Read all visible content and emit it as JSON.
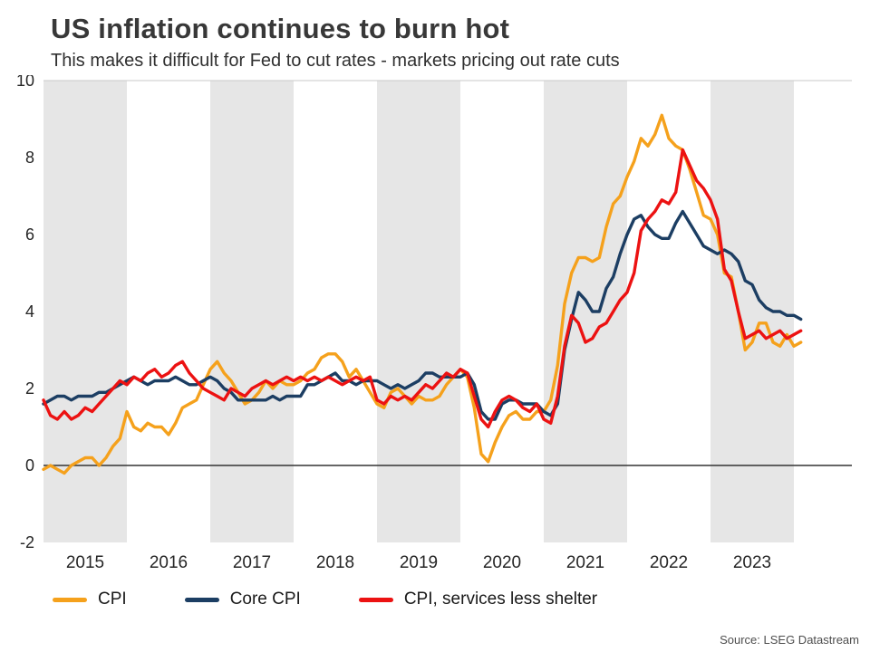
{
  "header": {
    "title": "US inflation continues to burn hot",
    "subtitle": "This makes it difficult for Fed to cut rates - markets pricing out rate cuts"
  },
  "source": "Source: LSEG Datastream",
  "colors": {
    "cpi": "#F5A11C",
    "core_cpi": "#1C3E63",
    "services": "#EC1212",
    "band": "#E6E6E6",
    "zero_line": "#333333",
    "top_grid": "#C8C8C8",
    "tick_text": "#262626"
  },
  "chart_data": {
    "type": "line",
    "title": "US inflation continues to burn hot",
    "subtitle": "This makes it difficult for Fed to cut rates - markets pricing out rate cuts",
    "x_start": "2015-01",
    "x_end": "2024-02",
    "x_frequency": "monthly",
    "ylim": [
      -2,
      10
    ],
    "yticks": [
      -2,
      0,
      2,
      4,
      6,
      8,
      10
    ],
    "xticks": [
      "2015",
      "2016",
      "2017",
      "2018",
      "2019",
      "2020",
      "2021",
      "2022",
      "2023"
    ],
    "shaded_years": [
      "2015",
      "2017",
      "2019",
      "2021",
      "2023"
    ],
    "legend_position": "bottom",
    "series": [
      {
        "name": "CPI",
        "color": "#F5A11C",
        "values": [
          -0.1,
          0.0,
          -0.1,
          -0.2,
          0.0,
          0.1,
          0.2,
          0.2,
          0.0,
          0.2,
          0.5,
          0.7,
          1.4,
          1.0,
          0.9,
          1.1,
          1.0,
          1.0,
          0.8,
          1.1,
          1.5,
          1.6,
          1.7,
          2.1,
          2.5,
          2.7,
          2.4,
          2.2,
          1.9,
          1.6,
          1.7,
          1.9,
          2.2,
          2.0,
          2.2,
          2.1,
          2.1,
          2.2,
          2.4,
          2.5,
          2.8,
          2.9,
          2.9,
          2.7,
          2.3,
          2.5,
          2.2,
          1.9,
          1.6,
          1.5,
          1.9,
          2.0,
          1.8,
          1.6,
          1.8,
          1.7,
          1.7,
          1.8,
          2.1,
          2.3,
          2.5,
          2.3,
          1.5,
          0.3,
          0.1,
          0.6,
          1.0,
          1.3,
          1.4,
          1.2,
          1.2,
          1.4,
          1.4,
          1.7,
          2.6,
          4.2,
          5.0,
          5.4,
          5.4,
          5.3,
          5.4,
          6.2,
          6.8,
          7.0,
          7.5,
          7.9,
          8.5,
          8.3,
          8.6,
          9.1,
          8.5,
          8.3,
          8.2,
          7.7,
          7.1,
          6.5,
          6.4,
          6.0,
          5.0,
          4.9,
          4.0,
          3.0,
          3.2,
          3.7,
          3.7,
          3.2,
          3.1,
          3.4,
          3.1,
          3.2
        ]
      },
      {
        "name": "Core CPI",
        "color": "#1C3E63",
        "values": [
          1.6,
          1.7,
          1.8,
          1.8,
          1.7,
          1.8,
          1.8,
          1.8,
          1.9,
          1.9,
          2.0,
          2.1,
          2.2,
          2.3,
          2.2,
          2.1,
          2.2,
          2.2,
          2.2,
          2.3,
          2.2,
          2.1,
          2.1,
          2.2,
          2.3,
          2.2,
          2.0,
          1.9,
          1.7,
          1.7,
          1.7,
          1.7,
          1.7,
          1.8,
          1.7,
          1.8,
          1.8,
          1.8,
          2.1,
          2.1,
          2.2,
          2.3,
          2.4,
          2.2,
          2.2,
          2.1,
          2.2,
          2.2,
          2.2,
          2.1,
          2.0,
          2.1,
          2.0,
          2.1,
          2.2,
          2.4,
          2.4,
          2.3,
          2.3,
          2.3,
          2.3,
          2.4,
          2.1,
          1.4,
          1.2,
          1.2,
          1.6,
          1.7,
          1.7,
          1.6,
          1.6,
          1.6,
          1.4,
          1.3,
          1.6,
          3.0,
          3.8,
          4.5,
          4.3,
          4.0,
          4.0,
          4.6,
          4.9,
          5.5,
          6.0,
          6.4,
          6.5,
          6.2,
          6.0,
          5.9,
          5.9,
          6.3,
          6.6,
          6.3,
          6.0,
          5.7,
          5.6,
          5.5,
          5.6,
          5.5,
          5.3,
          4.8,
          4.7,
          4.3,
          4.1,
          4.0,
          4.0,
          3.9,
          3.9,
          3.8
        ]
      },
      {
        "name": "CPI, services less shelter",
        "color": "#EC1212",
        "values": [
          1.7,
          1.3,
          1.2,
          1.4,
          1.2,
          1.3,
          1.5,
          1.4,
          1.6,
          1.8,
          2.0,
          2.2,
          2.1,
          2.3,
          2.2,
          2.4,
          2.5,
          2.3,
          2.4,
          2.6,
          2.7,
          2.4,
          2.2,
          2.0,
          1.9,
          1.8,
          1.7,
          2.0,
          1.9,
          1.8,
          2.0,
          2.1,
          2.2,
          2.1,
          2.2,
          2.3,
          2.2,
          2.3,
          2.2,
          2.3,
          2.2,
          2.3,
          2.2,
          2.1,
          2.2,
          2.3,
          2.2,
          2.3,
          1.7,
          1.6,
          1.8,
          1.7,
          1.8,
          1.7,
          1.9,
          2.1,
          2.0,
          2.2,
          2.4,
          2.3,
          2.5,
          2.4,
          1.8,
          1.2,
          1.0,
          1.4,
          1.7,
          1.8,
          1.7,
          1.5,
          1.4,
          1.6,
          1.2,
          1.1,
          1.8,
          3.1,
          3.9,
          3.7,
          3.2,
          3.3,
          3.6,
          3.7,
          4.0,
          4.3,
          4.5,
          5.0,
          6.1,
          6.4,
          6.6,
          6.9,
          6.8,
          7.1,
          8.2,
          7.8,
          7.4,
          7.2,
          6.9,
          6.4,
          5.1,
          4.8,
          4.0,
          3.3,
          3.4,
          3.5,
          3.3,
          3.4,
          3.5,
          3.3,
          3.4,
          3.5
        ]
      }
    ]
  }
}
